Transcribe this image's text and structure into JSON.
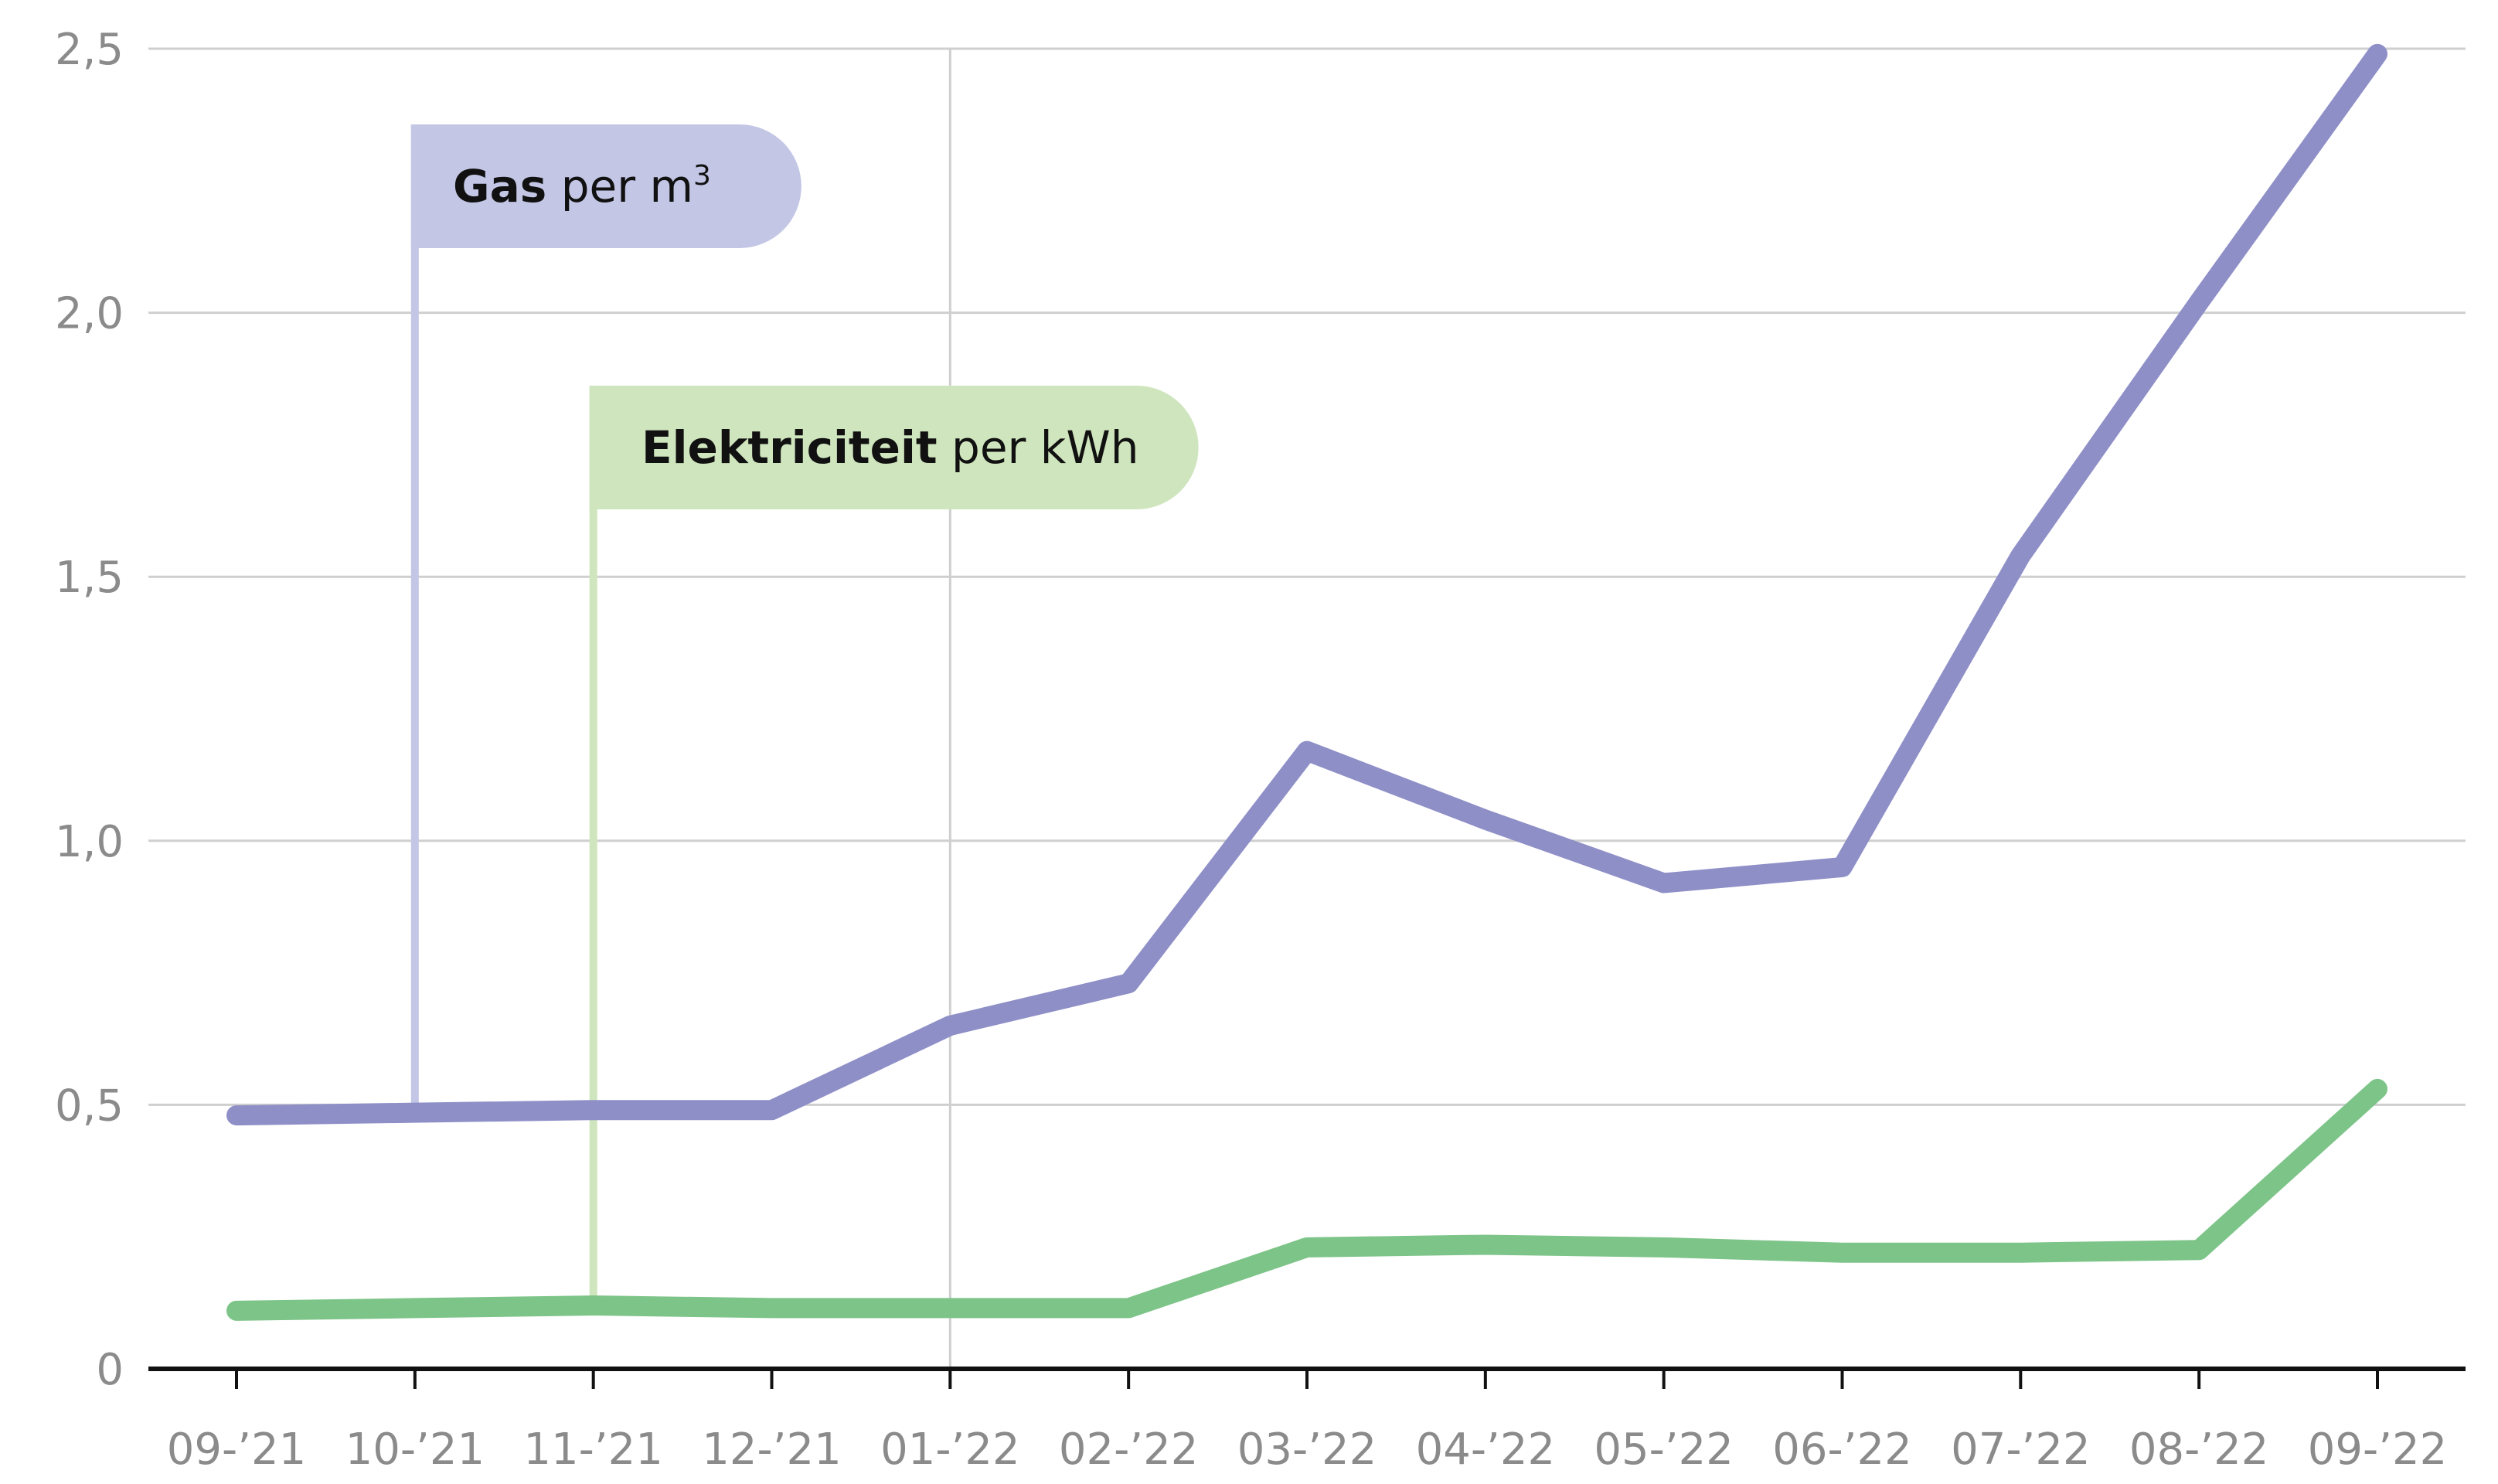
{
  "chart_data": {
    "type": "line",
    "categories": [
      "09-’21",
      "10-’21",
      "11-’21",
      "12-’21",
      "01-’22",
      "02-’22",
      "03-’22",
      "04-’22",
      "05-’22",
      "06-’22",
      "07-’22",
      "08-’22",
      "09-’22"
    ],
    "y_ticks": [
      "0",
      "0,5",
      "1,0",
      "1,5",
      "2,0",
      "2,5"
    ],
    "ylim": [
      0,
      2.5
    ],
    "grid": true,
    "highlight_category": "01-’22",
    "series": [
      {
        "key": "gas",
        "values": [
          0.48,
          0.485,
          0.49,
          0.49,
          0.65,
          0.73,
          1.17,
          1.04,
          0.92,
          0.95,
          1.54,
          2.02,
          2.49
        ],
        "color": "#8f8fc8",
        "label_bold": "Gas",
        "label_rest": " per m",
        "label_sup": "3",
        "label_color": "#c3c6e5",
        "label_anchor_category": "10-’21"
      },
      {
        "key": "electricity",
        "values": [
          0.11,
          0.115,
          0.12,
          0.115,
          0.115,
          0.115,
          0.23,
          0.235,
          0.23,
          0.22,
          0.22,
          0.225,
          0.53
        ],
        "color": "#7dc488",
        "label_bold": "Elektriciteit",
        "label_rest": " per kWh",
        "label_sup": "",
        "label_color": "#cfe5bd",
        "label_anchor_category": "11-’21"
      }
    ]
  }
}
